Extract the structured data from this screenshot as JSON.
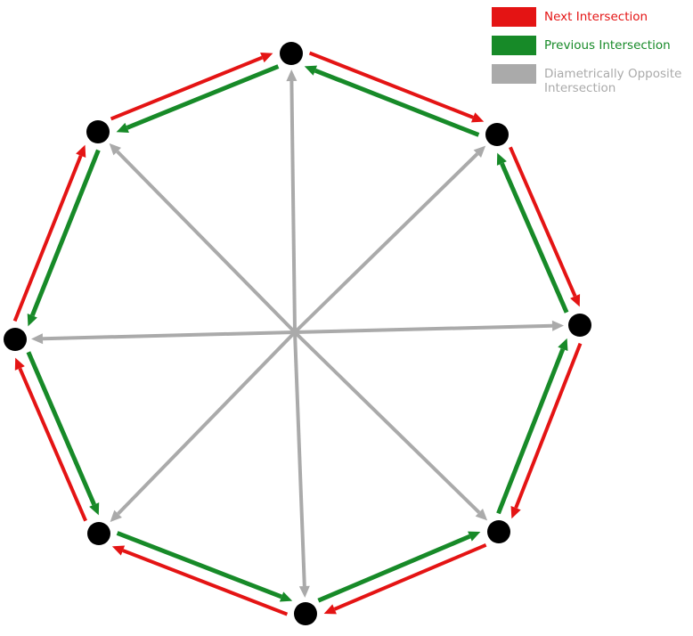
{
  "colors": {
    "next": "#e41414",
    "previous": "#178a28",
    "opposite": "#aaaaaa",
    "node": "#000000"
  },
  "legend": {
    "items": [
      {
        "label": "Next Intersection",
        "color": "#e41414"
      },
      {
        "label": "Previous Intersection",
        "color": "#178a28"
      },
      {
        "label": "Diametrically Opposite Intersection",
        "color": "#aaaaaa"
      }
    ]
  },
  "diagram": {
    "node_count": 8,
    "edge_types": [
      "next",
      "previous",
      "opposite"
    ]
  }
}
